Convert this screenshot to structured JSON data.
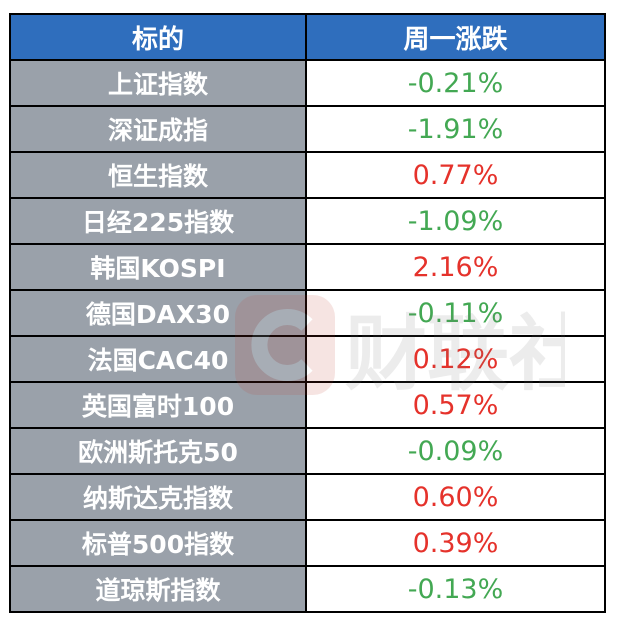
{
  "table": {
    "headers": [
      "标的",
      "周一涨跌"
    ],
    "rows": [
      {
        "name": "上证指数",
        "change": "-0.21%",
        "direction": "down"
      },
      {
        "name": "深证成指",
        "change": "-1.91%",
        "direction": "down"
      },
      {
        "name": "恒生指数",
        "change": "0.77%",
        "direction": "up"
      },
      {
        "name": "日经225指数",
        "change": "-1.09%",
        "direction": "down"
      },
      {
        "name": "韩国KOSPI",
        "change": "2.16%",
        "direction": "up"
      },
      {
        "name": "德国DAX30",
        "change": "-0.11%",
        "direction": "down"
      },
      {
        "name": "法国CAC40",
        "change": "0.12%",
        "direction": "up"
      },
      {
        "name": "英国富时100",
        "change": "0.57%",
        "direction": "up"
      },
      {
        "name": "欧洲斯托克50",
        "change": "-0.09%",
        "direction": "down"
      },
      {
        "name": "纳斯达克指数",
        "change": "0.60%",
        "direction": "up"
      },
      {
        "name": "标普500指数",
        "change": "0.39%",
        "direction": "up"
      },
      {
        "name": "道琼斯指数",
        "change": "-0.13%",
        "direction": "down"
      }
    ]
  },
  "colors": {
    "header": "#2f6ebd",
    "name_cell": "#9aa1aa",
    "down": "#43a853",
    "up": "#e5322b"
  },
  "watermark": {
    "text": "财联社"
  }
}
